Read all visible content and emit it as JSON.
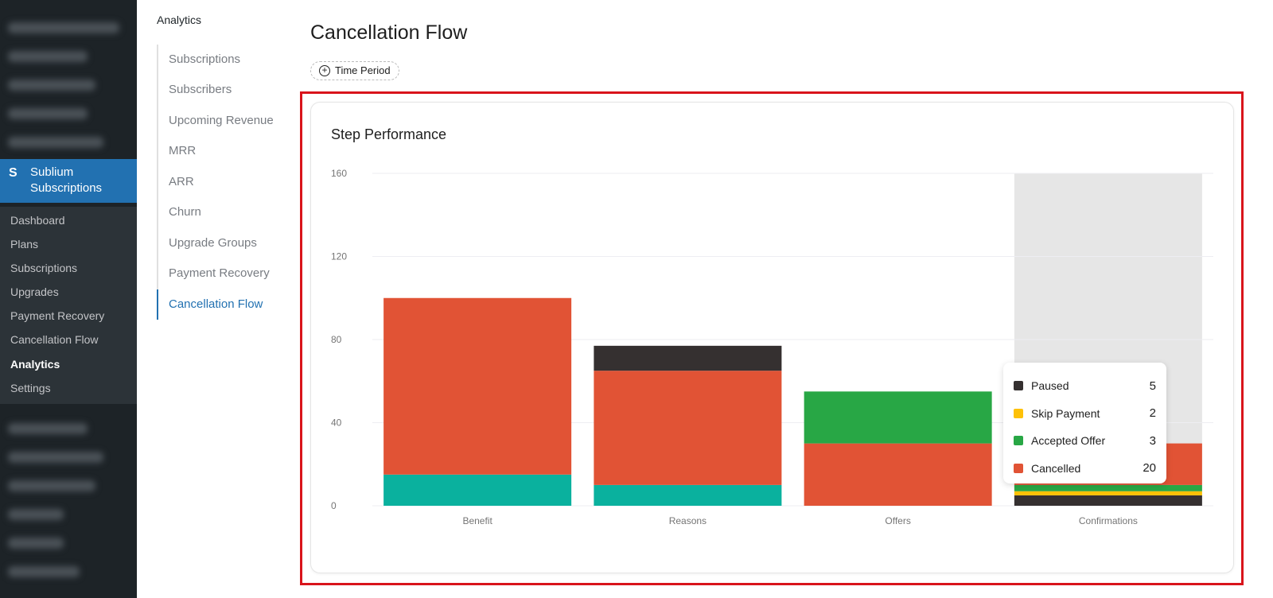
{
  "admin_menu": {
    "brand": "Sublium Subscriptions",
    "brand_icon": "sublium-logo-icon",
    "items": [
      {
        "label": "Dashboard"
      },
      {
        "label": "Plans"
      },
      {
        "label": "Subscriptions"
      },
      {
        "label": "Upgrades"
      },
      {
        "label": "Payment Recovery"
      },
      {
        "label": "Cancellation Flow"
      },
      {
        "label": "Analytics",
        "active": true
      },
      {
        "label": "Settings"
      }
    ]
  },
  "secondary_nav": {
    "title": "Analytics",
    "items": [
      {
        "label": "Subscriptions"
      },
      {
        "label": "Subscribers"
      },
      {
        "label": "Upcoming Revenue"
      },
      {
        "label": "MRR"
      },
      {
        "label": "ARR"
      },
      {
        "label": "Churn"
      },
      {
        "label": "Upgrade Groups"
      },
      {
        "label": "Payment Recovery"
      },
      {
        "label": "Cancellation Flow",
        "active": true
      }
    ]
  },
  "page": {
    "title": "Cancellation Flow",
    "filter_label": "Time Period",
    "filter_icon": "plus-circle-icon"
  },
  "card": {
    "title": "Step Performance"
  },
  "chart_data": {
    "type": "bar",
    "stacked": true,
    "title": "Step Performance",
    "categories": [
      "Benefit",
      "Reasons",
      "Offers",
      "Confirmations"
    ],
    "ylim": [
      0,
      160
    ],
    "yticks": [
      0,
      40,
      80,
      120,
      160
    ],
    "grid": true,
    "highlighted_category": "Confirmations",
    "series": [
      {
        "values": [
          15,
          10,
          0,
          0
        ],
        "color": "#0ab19e"
      },
      {
        "name": "Cancelled",
        "values": [
          85,
          55,
          30,
          20
        ],
        "color": "#e15335"
      },
      {
        "name": "Accepted Offer",
        "values": [
          0,
          0,
          25,
          3
        ],
        "color": "#28a745"
      },
      {
        "name": "Skip Payment",
        "values": [
          0,
          0,
          0,
          2
        ],
        "color": "#fec107"
      },
      {
        "name": "Paused",
        "values": [
          0,
          12,
          0,
          5
        ],
        "color": "#353030"
      }
    ],
    "stack_order": [
      [
        0,
        1,
        2,
        3,
        4
      ],
      [
        0,
        1,
        4,
        3,
        2
      ],
      [
        0,
        1,
        2,
        3,
        4
      ],
      [
        4,
        3,
        2,
        1,
        0
      ]
    ]
  },
  "tooltip": {
    "rows": [
      {
        "label": "Paused",
        "value": "5",
        "color": "#353030"
      },
      {
        "label": "Skip Payment",
        "value": "2",
        "color": "#fec107"
      },
      {
        "label": "Accepted Offer",
        "value": "3",
        "color": "#28a745"
      },
      {
        "label": "Cancelled",
        "value": "20",
        "color": "#e15335"
      }
    ]
  }
}
